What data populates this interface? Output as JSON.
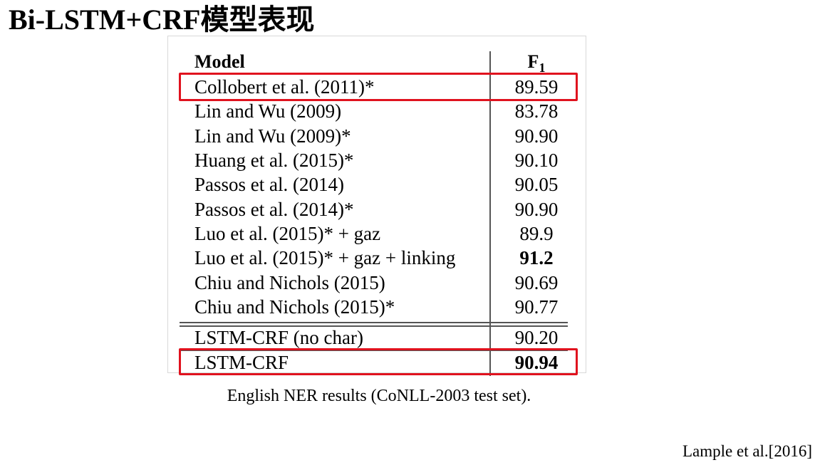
{
  "slide": {
    "title": "Bi-LSTM+CRF模型表现"
  },
  "table": {
    "headers": {
      "model": "Model",
      "f1_base": "F",
      "f1_sub": "1"
    },
    "rows": [
      {
        "model": "Collobert et al. (2011)*",
        "f1": "89.59"
      },
      {
        "model": "Lin and Wu (2009)",
        "f1": "83.78"
      },
      {
        "model": "Lin and Wu (2009)*",
        "f1": "90.90"
      },
      {
        "model": "Huang et al. (2015)*",
        "f1": "90.10"
      },
      {
        "model": "Passos et al. (2014)",
        "f1": "90.05"
      },
      {
        "model": "Passos et al. (2014)*",
        "f1": "90.90"
      },
      {
        "model": "Luo et al. (2015)* + gaz",
        "f1": "89.9"
      },
      {
        "model": "Luo et al. (2015)* + gaz + linking",
        "f1": "91.2"
      },
      {
        "model": "Chiu and Nichols (2015)",
        "f1": "90.69"
      },
      {
        "model": "Chiu and Nichols (2015)*",
        "f1": "90.77"
      },
      {
        "model": "LSTM-CRF (no char)",
        "f1": "90.20"
      },
      {
        "model": "LSTM-CRF",
        "f1": "90.94"
      }
    ],
    "caption": "English NER results (CoNLL-2003 test set)."
  },
  "citation": "Lample et al.[2016]",
  "colors": {
    "highlight": "#e0121e",
    "rule": "#555555"
  }
}
